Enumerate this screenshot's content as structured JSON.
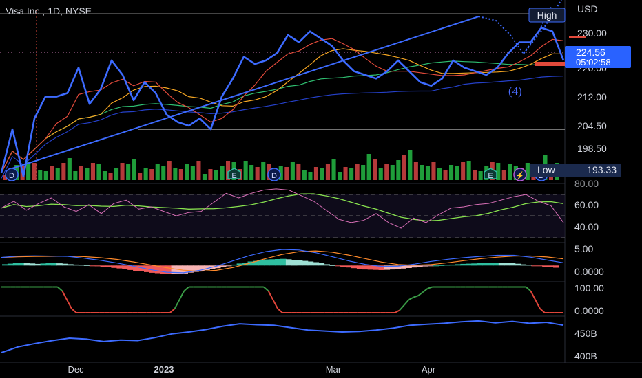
{
  "symbol": {
    "title": "Visa Inc., 1D, NYSE",
    "currency": "USD"
  },
  "colors": {
    "price_line": "#3d6bff",
    "ma_red": "#e24a3b",
    "ma_orange": "#f5a623",
    "ma_green": "#2fbf71",
    "ma_blue": "#2540c8",
    "volume_up": "#1f9d3a",
    "volume_down": "#b53a3a",
    "rsi": "#d86fb6",
    "rsi_ma": "#89e34f",
    "macd": "#3d6bff",
    "macd_signal": "#ff8a2b",
    "stoch_up": "#3a9b46",
    "stoch_down": "#e0453a",
    "price_badge": "#2962ff"
  },
  "chart_data": [
    {
      "type": "line",
      "name": "price-pane",
      "x_axis": {
        "ticks": [
          "Dec",
          "2023",
          "Mar",
          "Apr"
        ]
      },
      "y_axis": {
        "ticks": [
          230.0,
          220.0,
          212.0,
          204.5,
          198.5
        ],
        "ylim": [
          191,
          238
        ]
      },
      "series": [
        {
          "values": [
            193,
            205,
            192,
            208,
            214,
            214,
            215,
            222,
            212,
            216,
            224,
            220,
            213,
            218,
            215,
            209,
            207,
            206,
            208,
            205,
            214,
            219,
            225,
            223,
            224,
            226,
            231,
            229,
            232,
            230,
            228,
            224,
            221,
            220,
            219,
            221,
            224,
            221,
            218,
            217,
            219,
            224,
            222,
            221,
            220,
            222,
            226,
            229,
            229,
            233,
            232,
            224
          ]
        }
      ],
      "price_label": {
        "value": "224.56",
        "countdown": "05:02:58"
      },
      "annotations": {
        "high": "High",
        "low_label": "Low",
        "low_value": "193.33",
        "wave": "(4)"
      },
      "events": [
        "D",
        "E",
        "D",
        "E",
        "E",
        "⚡",
        "D"
      ]
    },
    {
      "type": "line",
      "name": "rsi-pane",
      "y_axis": {
        "ticks": [
          60.0,
          40.0
        ],
        "ylim": [
          28,
          77
        ]
      },
      "series": [
        {
          "values": [
            57,
            63,
            55,
            61,
            66,
            58,
            54,
            60,
            52,
            61,
            64,
            56,
            58,
            54,
            50,
            53,
            54,
            62,
            70,
            66,
            70,
            73,
            74,
            73,
            68,
            63,
            55,
            47,
            44,
            46,
            52,
            44,
            39,
            48,
            44,
            51,
            57,
            58,
            60,
            61,
            64,
            67,
            69,
            63,
            59,
            44
          ]
        }
      ]
    },
    {
      "type": "bar",
      "name": "macd-pane",
      "y_axis": {
        "ticks": [
          5.0,
          0.0
        ],
        "ylim": [
          -4.5,
          6.5
        ]
      },
      "series": [
        {
          "values": [
            0.4,
            0.9,
            0.5,
            0.8,
            0.4,
            0.1,
            -0.4,
            -0.9,
            -1.6,
            -2.2,
            -2.6,
            -2.4,
            -1.7,
            -0.8,
            0.3,
            1.2,
            1.8,
            2.0,
            1.6,
            1.0,
            0.1,
            -0.6,
            -1.2,
            -1.4,
            -1.1,
            -0.6,
            -0.1,
            0.2,
            0.5,
            0.7,
            0.9,
            0.7,
            0.2,
            -0.4,
            -0.8
          ]
        }
      ]
    },
    {
      "type": "line",
      "name": "stoch-pane",
      "y_axis": {
        "ticks": [
          100.0,
          0.0
        ],
        "ylim": [
          -8,
          112
        ]
      },
      "series": [
        {
          "values": [
            100,
            100,
            100,
            100,
            0,
            0,
            0,
            0,
            0,
            0,
            100,
            100,
            100,
            100,
            100,
            0,
            0,
            0,
            0,
            0,
            0,
            0,
            60,
            100,
            100,
            100,
            100,
            100,
            100,
            0,
            0
          ]
        }
      ]
    },
    {
      "type": "line",
      "name": "obv-pane",
      "y_axis": {
        "ticks": [
          "450B",
          "400B"
        ],
        "ylim": [
          395,
          478
        ]
      },
      "series": [
        {
          "values": [
            405,
            417,
            424,
            430,
            435,
            433,
            428,
            431,
            430,
            436,
            444,
            448,
            453,
            460,
            465,
            463,
            462,
            457,
            452,
            450,
            448,
            449,
            452,
            456,
            462,
            464,
            466,
            469,
            471,
            467,
            470,
            466,
            468,
            462
          ]
        }
      ]
    }
  ]
}
